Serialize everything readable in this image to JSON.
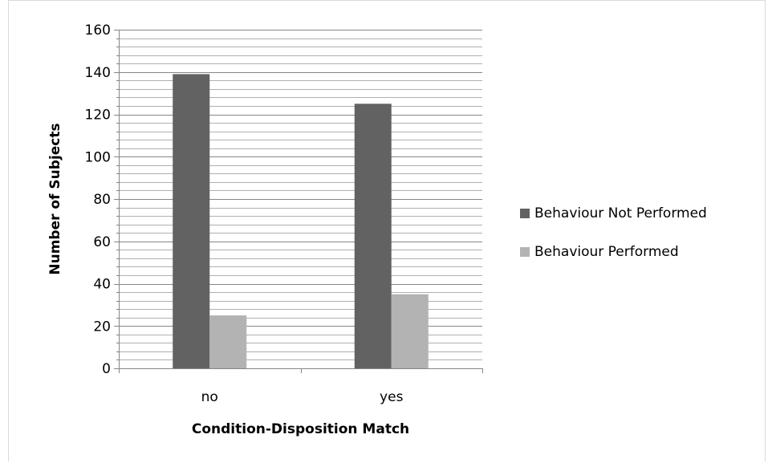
{
  "chart_data": {
    "type": "bar",
    "title": "",
    "xlabel": "Condition-Disposition Match",
    "ylabel": "Number of Subjects",
    "categories": [
      "no",
      "yes"
    ],
    "series": [
      {
        "name": "Behaviour Not Performed",
        "values": [
          139,
          125
        ],
        "color": "#626262"
      },
      {
        "name": "Behaviour Performed",
        "values": [
          25,
          35
        ],
        "color": "#b3b3b3"
      }
    ],
    "ylim": [
      0,
      160
    ],
    "yticks": [
      0,
      20,
      40,
      60,
      80,
      100,
      120,
      140,
      160
    ],
    "minor_grid_step": 4,
    "grid": true,
    "legend_position": "right"
  }
}
